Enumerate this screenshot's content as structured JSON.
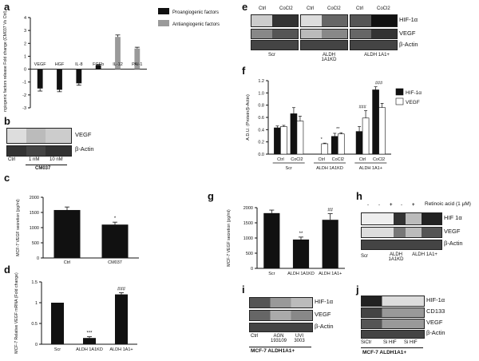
{
  "panels": {
    "a": {
      "letter": "a"
    },
    "b": {
      "letter": "b"
    },
    "c": {
      "letter": "c"
    },
    "d": {
      "letter": "d"
    },
    "e": {
      "letter": "e"
    },
    "f": {
      "letter": "f"
    },
    "g": {
      "letter": "g"
    },
    "h": {
      "letter": "h"
    },
    "i": {
      "letter": "i"
    },
    "j": {
      "letter": "j"
    }
  },
  "b_blot": {
    "bands": [
      "VEGF",
      "β-Actin"
    ],
    "lanes": [
      "Ctrl",
      "1 nM",
      "10 nM"
    ],
    "group": "CM037"
  },
  "e_blot": {
    "lanes_top": [
      "Ctrl",
      "CoCl2",
      "Ctrl",
      "CoCl2",
      "Ctrl",
      "CoCl2"
    ],
    "bands": [
      "HIF-1α",
      "VEGF",
      "β-Actin"
    ],
    "groups": [
      "Scr",
      "ALDH 1A1KD",
      "ALDH 1A1+"
    ]
  },
  "h_blot": {
    "treatment_label": "Retinoic acid (1 μM)",
    "signs": [
      "-",
      "-",
      "+",
      "-",
      "+"
    ],
    "bands": [
      "HIF 1α",
      "VEGF",
      "β-Actin"
    ],
    "groups": [
      "Scr",
      "ALDH 1A1KD",
      "ALDH 1A1+"
    ]
  },
  "i_blot": {
    "bands": [
      "HIF-1α",
      "VEGF",
      "β-Actin"
    ],
    "lanes": [
      "Ctrl",
      "AGN 193109",
      "UVI 3003"
    ],
    "group": "MCF-7 ALDH1A1+"
  },
  "j_blot": {
    "bands": [
      "HIF-1α",
      "CD133",
      "VEGF",
      "β-Actin"
    ],
    "lanes": [
      "SiCtr",
      "Si HIF",
      "Si HIF"
    ],
    "group": "MCF-7 ALDH1A1+"
  },
  "chart_data": [
    {
      "id": "a",
      "type": "bar",
      "ylabel": "Angiogenic factors release Fold change (CM037 Vs Ctrl)",
      "categories": [
        "VEGF",
        "HGF",
        "IL-8",
        "FGFb",
        "IL-12",
        "PAI-1"
      ],
      "values": [
        -1.5,
        -1.6,
        -1.1,
        0.3,
        2.5,
        1.6
      ],
      "errors": [
        0.2,
        0.15,
        0.15,
        0.05,
        0.15,
        0.1
      ],
      "colors": [
        "#111111",
        "#111111",
        "#111111",
        "#111111",
        "#9a9a9a",
        "#9a9a9a"
      ],
      "legend": [
        {
          "name": "Proangiogenic factors",
          "color": "#111111"
        },
        {
          "name": "Antiangiogenic factors",
          "color": "#9a9a9a"
        }
      ],
      "ylim": [
        -3,
        4
      ],
      "yticks": [
        -3,
        -2,
        -1,
        0,
        1,
        2,
        3,
        4
      ]
    },
    {
      "id": "c",
      "type": "bar",
      "ylabel": "MCF-7 VEGF secretion (pg/ml)",
      "categories": [
        "Ctrl",
        "CM037"
      ],
      "values": [
        1580,
        1100
      ],
      "errors": [
        100,
        80
      ],
      "significance": [
        "",
        "*"
      ],
      "ylim": [
        0,
        2000
      ],
      "yticks": [
        0,
        500,
        1000,
        1500,
        2000
      ]
    },
    {
      "id": "d",
      "type": "bar",
      "ylabel": "MCF-7 Relative VEGF mRNA (Fold change)",
      "categories": [
        "Scr",
        "ALDH 1A1KD",
        "ALDH 1A1+"
      ],
      "values": [
        1.0,
        0.15,
        1.2
      ],
      "errors": [
        0,
        0.03,
        0.04
      ],
      "significance": [
        "",
        "***",
        "###"
      ],
      "ylim": [
        0,
        1.5
      ],
      "yticks": [
        0.0,
        0.5,
        1.0,
        1.5
      ]
    },
    {
      "id": "f",
      "type": "bar",
      "ylabel": "A.D.U. (Protein/β-Actin)",
      "groups": [
        "Scr",
        "ALDH 1A1KD",
        "ALDH 1A1+"
      ],
      "subcategories": [
        "Ctrl",
        "CoCl2"
      ],
      "series": [
        {
          "name": "HIF-1α",
          "color": "#111111",
          "values": [
            0.43,
            0.66,
            0.0,
            0.29,
            0.37,
            1.05
          ],
          "errors": [
            0.03,
            0.1,
            0,
            0.05,
            0.08,
            0.05
          ]
        },
        {
          "name": "VEGF",
          "color": "#ffffff",
          "values": [
            0.45,
            0.54,
            0.17,
            0.33,
            0.59,
            0.76
          ],
          "errors": [
            0.02,
            0.08,
            0.01,
            0.02,
            0.12,
            0.07
          ]
        }
      ],
      "significance": [
        "",
        "",
        "*",
        "**",
        "###",
        "###"
      ],
      "ylim": [
        0,
        1.2
      ],
      "yticks": [
        0.0,
        0.2,
        0.4,
        0.6,
        0.8,
        1.0,
        1.2
      ]
    },
    {
      "id": "g",
      "type": "bar",
      "ylabel": "MCF-7 VEGF secretion (pg/ml)",
      "categories": [
        "Scr",
        "ALDH 1A1KD",
        "ALDH 1A1+"
      ],
      "values": [
        1820,
        950,
        1600
      ],
      "errors": [
        100,
        80,
        200
      ],
      "significance": [
        "",
        "**",
        "##"
      ],
      "ylim": [
        0,
        2000
      ],
      "yticks": [
        0,
        500,
        1000,
        1500,
        2000
      ]
    }
  ]
}
